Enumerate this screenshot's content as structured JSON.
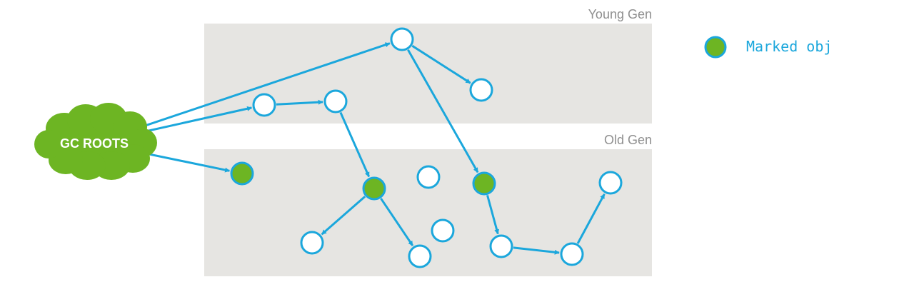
{
  "regions": {
    "young": {
      "label": "Young Gen"
    },
    "old": {
      "label": "Old Gen"
    }
  },
  "roots": {
    "label": "GC ROOTS"
  },
  "legend": {
    "label": "Marked obj"
  },
  "colors": {
    "region_fill": "#e6e5e2",
    "edge": "#1ba7dc",
    "node_stroke": "#1ba7dc",
    "node_fill": "#ffffff",
    "marked_fill": "#6db523",
    "roots_fill": "#6db523",
    "roots_text": "#ffffff",
    "region_text": "#8f8f8f",
    "legend_text": "#1ba7dc"
  },
  "nodes": [
    {
      "id": "y1",
      "region": "young",
      "marked": false
    },
    {
      "id": "y2",
      "region": "young",
      "marked": false
    },
    {
      "id": "y3",
      "region": "young",
      "marked": false
    },
    {
      "id": "y4",
      "region": "young",
      "marked": false
    },
    {
      "id": "o1",
      "region": "old",
      "marked": true
    },
    {
      "id": "o2",
      "region": "old",
      "marked": true
    },
    {
      "id": "o3",
      "region": "old",
      "marked": false
    },
    {
      "id": "o4",
      "region": "old",
      "marked": true
    },
    {
      "id": "o5",
      "region": "old",
      "marked": false
    },
    {
      "id": "o6",
      "region": "old",
      "marked": false
    },
    {
      "id": "o7",
      "region": "old",
      "marked": false
    },
    {
      "id": "o8",
      "region": "old",
      "marked": false
    },
    {
      "id": "o9",
      "region": "old",
      "marked": false
    },
    {
      "id": "o10",
      "region": "old",
      "marked": false
    },
    {
      "id": "o11",
      "region": "old",
      "marked": false
    }
  ],
  "edges": [
    {
      "from": "roots",
      "to": "y1"
    },
    {
      "from": "roots",
      "to": "y3"
    },
    {
      "from": "roots",
      "to": "o1"
    },
    {
      "from": "y1",
      "to": "y2"
    },
    {
      "from": "y1",
      "to": "o4"
    },
    {
      "from": "y3",
      "to": "y4"
    },
    {
      "from": "y4",
      "to": "o2"
    },
    {
      "from": "o2",
      "to": "o6"
    },
    {
      "from": "o2",
      "to": "o7"
    },
    {
      "from": "o4",
      "to": "o9"
    },
    {
      "from": "o9",
      "to": "o10"
    },
    {
      "from": "o10",
      "to": "o11"
    }
  ]
}
